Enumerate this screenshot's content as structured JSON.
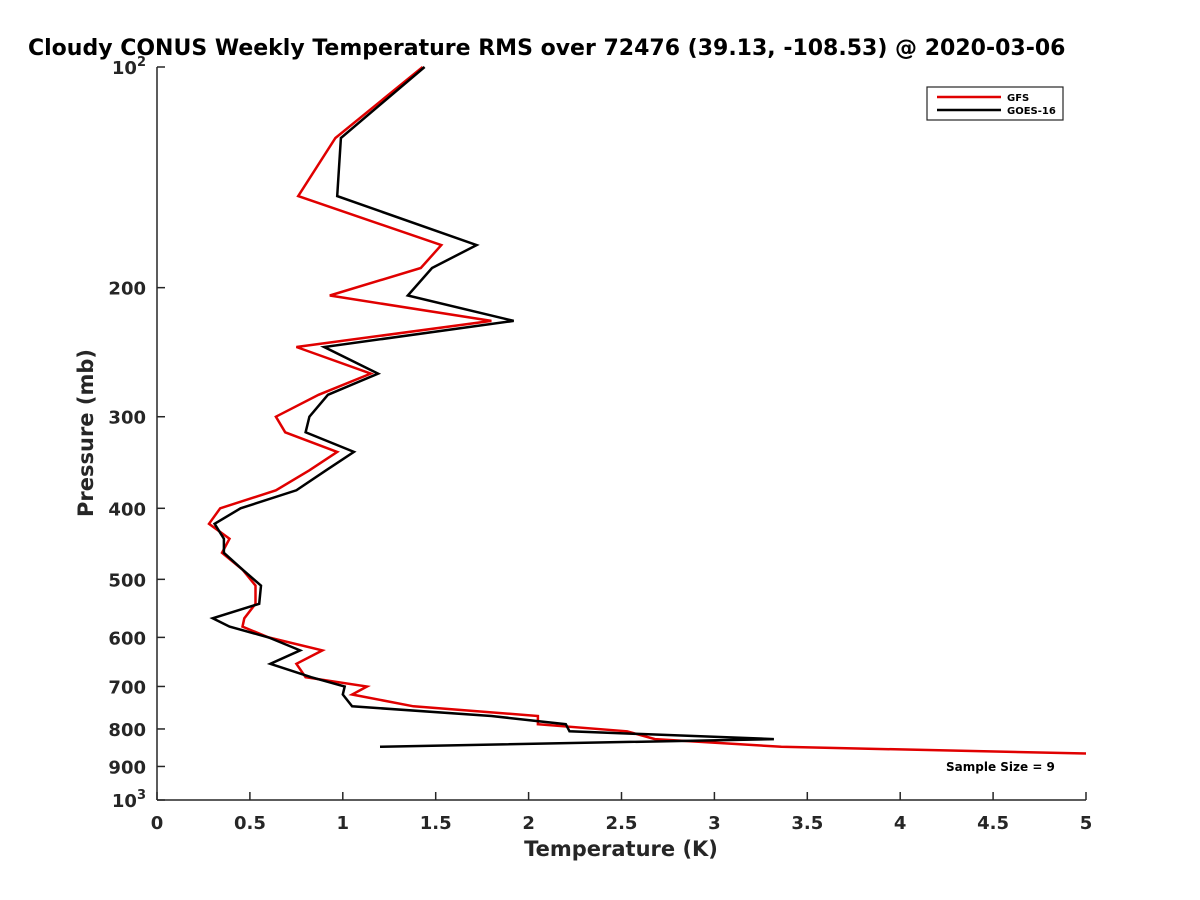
{
  "chart_data": {
    "type": "line",
    "title": "Cloudy CONUS Weekly Temperature RMS over 72476 (39.13, -108.53) @ 2020-03-06",
    "xlabel": "Temperature (K)",
    "ylabel": "Pressure (mb)",
    "xlim": [
      0,
      5
    ],
    "ylim": [
      100,
      1000
    ],
    "y_scale": "log",
    "y_reversed": true,
    "x_ticks": [
      "0",
      "0.5",
      "1",
      "1.5",
      "2",
      "2.5",
      "3",
      "3.5",
      "4",
      "4.5",
      "5"
    ],
    "x_tick_values": [
      0,
      0.5,
      1,
      1.5,
      2,
      2.5,
      3,
      3.5,
      4,
      4.5,
      5
    ],
    "y_ticks": [
      {
        "value": 100,
        "base": "10",
        "exp": "2"
      },
      {
        "value": 200,
        "label": "200"
      },
      {
        "value": 300,
        "label": "300"
      },
      {
        "value": 400,
        "label": "400"
      },
      {
        "value": 500,
        "label": "500"
      },
      {
        "value": 600,
        "label": "600"
      },
      {
        "value": 700,
        "label": "700"
      },
      {
        "value": 800,
        "label": "800"
      },
      {
        "value": 900,
        "label": "900"
      },
      {
        "value": 1000,
        "base": "10",
        "exp": "3"
      }
    ],
    "grid": false,
    "legend_position": "top-right",
    "annotation": "Sample Size = 9",
    "series": [
      {
        "name": "GFS",
        "color": "#e00000",
        "points": [
          [
            1.43,
            100
          ],
          [
            0.96,
            125
          ],
          [
            0.76,
            150
          ],
          [
            1.53,
            175
          ],
          [
            1.42,
            188
          ],
          [
            0.93,
            205
          ],
          [
            1.8,
            222
          ],
          [
            0.75,
            241
          ],
          [
            1.15,
            262
          ],
          [
            0.87,
            280
          ],
          [
            0.64,
            300
          ],
          [
            0.69,
            315
          ],
          [
            0.97,
            335
          ],
          [
            0.82,
            355
          ],
          [
            0.64,
            378
          ],
          [
            0.34,
            400
          ],
          [
            0.28,
            420
          ],
          [
            0.39,
            440
          ],
          [
            0.35,
            460
          ],
          [
            0.46,
            485
          ],
          [
            0.53,
            510
          ],
          [
            0.53,
            540
          ],
          [
            0.47,
            565
          ],
          [
            0.46,
            580
          ],
          [
            0.6,
            600
          ],
          [
            0.89,
            625
          ],
          [
            0.75,
            652
          ],
          [
            0.8,
            680
          ],
          [
            1.13,
            700
          ],
          [
            1.05,
            718
          ],
          [
            1.38,
            745
          ],
          [
            2.05,
            768
          ],
          [
            2.05,
            788
          ],
          [
            2.53,
            806
          ],
          [
            2.68,
            826
          ],
          [
            3.36,
            846
          ],
          [
            5.0,
            864
          ]
        ]
      },
      {
        "name": "GOES-16",
        "color": "#000000",
        "points": [
          [
            1.44,
            100
          ],
          [
            0.99,
            125
          ],
          [
            0.97,
            150
          ],
          [
            1.72,
            175
          ],
          [
            1.48,
            188
          ],
          [
            1.35,
            205
          ],
          [
            1.92,
            222
          ],
          [
            0.9,
            241
          ],
          [
            1.19,
            262
          ],
          [
            0.92,
            280
          ],
          [
            0.82,
            300
          ],
          [
            0.8,
            315
          ],
          [
            1.06,
            335
          ],
          [
            0.91,
            355
          ],
          [
            0.75,
            378
          ],
          [
            0.45,
            400
          ],
          [
            0.31,
            420
          ],
          [
            0.36,
            440
          ],
          [
            0.36,
            460
          ],
          [
            0.46,
            485
          ],
          [
            0.56,
            510
          ],
          [
            0.55,
            540
          ],
          [
            0.3,
            565
          ],
          [
            0.39,
            580
          ],
          [
            0.6,
            600
          ],
          [
            0.77,
            625
          ],
          [
            0.61,
            652
          ],
          [
            0.83,
            680
          ],
          [
            1.01,
            700
          ],
          [
            1.0,
            718
          ],
          [
            1.05,
            745
          ],
          [
            1.8,
            768
          ],
          [
            2.2,
            788
          ],
          [
            2.22,
            806
          ],
          [
            3.32,
            826
          ],
          [
            1.2,
            846
          ]
        ]
      }
    ]
  }
}
